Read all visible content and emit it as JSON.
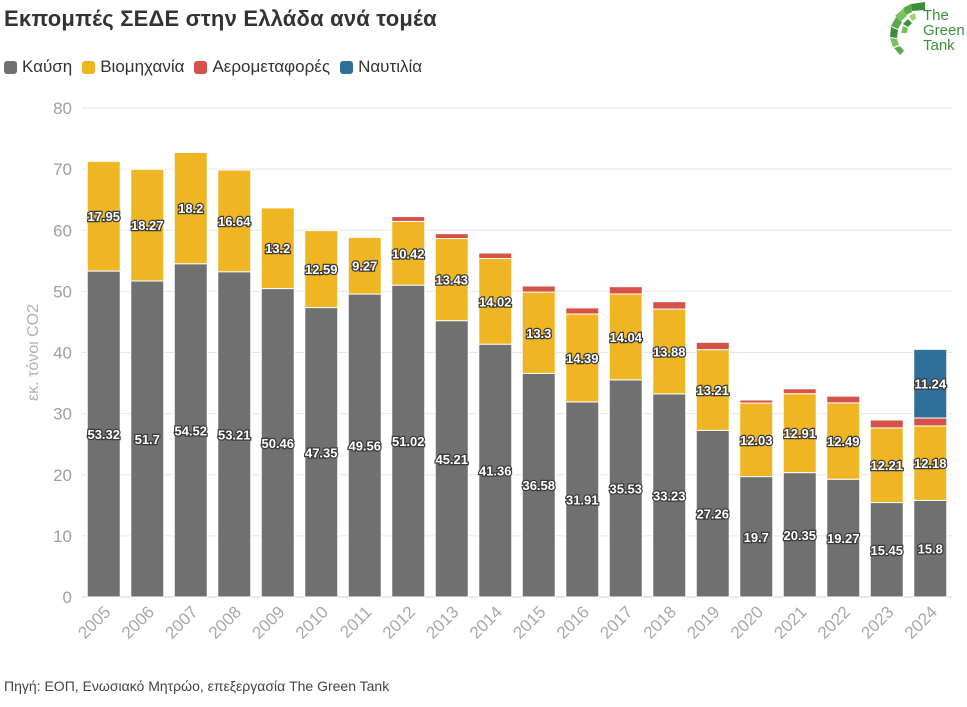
{
  "title": "Εκπομπές ΣΕΔΕ στην Ελλάδα ανά τομέα",
  "source": "Πηγή: ΕΟΠ, Ενωσιακό Μητρώο, επεξεργασία The Green Tank",
  "logo": {
    "line1": "The",
    "line2": "Green",
    "line3": "Tank"
  },
  "colors": {
    "combustion": "#707070",
    "industry": "#f0b522",
    "aviation": "#d6514a",
    "shipping": "#2e6e97"
  },
  "chart_data": {
    "type": "bar",
    "stacked": true,
    "ylabel": "εκ. τόνοι CO2",
    "xlabel": "",
    "ylim": [
      0,
      80
    ],
    "yticks": [
      0,
      10,
      20,
      30,
      40,
      50,
      60,
      70,
      80
    ],
    "grid": true,
    "legend_position": "top-left",
    "categories": [
      "2005",
      "2006",
      "2007",
      "2008",
      "2009",
      "2010",
      "2011",
      "2012",
      "2013",
      "2014",
      "2015",
      "2016",
      "2017",
      "2018",
      "2019",
      "2020",
      "2021",
      "2022",
      "2023",
      "2024"
    ],
    "series": [
      {
        "name": "Καύση",
        "key": "combustion",
        "values": [
          53.32,
          51.7,
          54.52,
          53.21,
          50.46,
          47.35,
          49.56,
          51.02,
          45.21,
          41.36,
          36.58,
          31.91,
          35.53,
          33.23,
          27.26,
          19.7,
          20.35,
          19.27,
          15.45,
          15.8
        ],
        "labels": [
          "53.32",
          "51.7",
          "54.52",
          "53.21",
          "50.46",
          "47.35",
          "49.56",
          "51.02",
          "45.21",
          "41.36",
          "36.58",
          "31.91",
          "35.53",
          "33.23",
          "27.26",
          "19.7",
          "20.35",
          "19.27",
          "15.45",
          "15.8"
        ]
      },
      {
        "name": "Βιομηχανία",
        "key": "industry",
        "values": [
          17.95,
          18.27,
          18.2,
          16.64,
          13.2,
          12.59,
          9.27,
          10.42,
          13.43,
          14.02,
          13.3,
          14.39,
          14.04,
          13.88,
          13.21,
          12.03,
          12.91,
          12.49,
          12.21,
          12.18
        ],
        "labels": [
          "17.95",
          "18.27",
          "18.2",
          "16.64",
          "13.2",
          "12.59",
          "9.27",
          "10.42",
          "13.43",
          "14.02",
          "13.3",
          "14.39",
          "14.04",
          "13.88",
          "13.21",
          "12.03",
          "12.91",
          "12.49",
          "12.21",
          "12.18"
        ]
      },
      {
        "name": "Αερομεταφορές",
        "key": "aviation",
        "values": [
          0,
          0,
          0,
          0,
          0,
          0,
          0,
          0.8,
          0.8,
          0.9,
          1.0,
          1.0,
          1.2,
          1.2,
          1.2,
          0.5,
          0.8,
          1.1,
          1.3,
          1.3
        ],
        "labels": []
      },
      {
        "name": "Ναυτιλία",
        "key": "shipping",
        "values": [
          0,
          0,
          0,
          0,
          0,
          0,
          0,
          0,
          0,
          0,
          0,
          0,
          0,
          0,
          0,
          0,
          0,
          0,
          0,
          11.24
        ],
        "labels": [
          "",
          "",
          "",
          "",
          "",
          "",
          "",
          "",
          "",
          "",
          "",
          "",
          "",
          "",
          "",
          "",
          "",
          "",
          "",
          "11.24"
        ]
      }
    ]
  }
}
